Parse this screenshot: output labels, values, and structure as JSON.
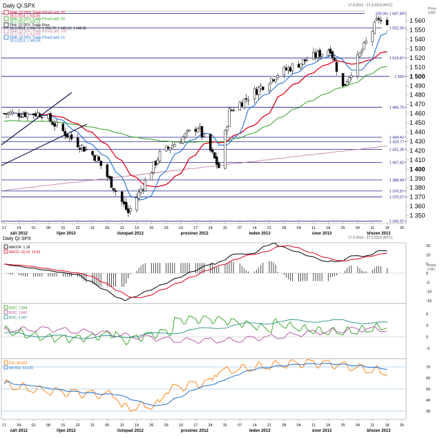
{
  "header": {
    "title": "Daily Q/.SPX",
    "date_range_main": "17.9.2012 - 27.3.2013 (NYC)",
    "date_range_ind": "17.9.2012 - 27.3.2013 (NYC)",
    "price_unit_line1": "Price",
    "price_unit_line2": "USD",
    "value_unit_line1": "Value",
    "value_unit_line2": "USD"
  },
  "colors": {
    "candle_up": "#ffffff",
    "candle_down": "#000000",
    "sma20": "#e0001a",
    "sma50": "#2aa01a",
    "sma200": "#c080a0",
    "sma10": "#1f6fd0",
    "hline": "#1a1a8c",
    "macd": "#000000",
    "macd_signal": "#e0001a",
    "roc1": "#2aa01a",
    "roc2": "#b04aa0",
    "roc3": "#1f8f7f",
    "rsi": "#ff7a00",
    "rsi_ma": "#1f6fd0"
  },
  "legend": [
    {
      "label": "SMA; Q/.SPX; Trade Price(Last); 20",
      "value": "18.3.2013; 1 531,81",
      "color": "#e0001a"
    },
    {
      "label": "SMA; Q/.SPX; Trade Price(Last); 50",
      "value": "18.3.2013; 1 509,12",
      "color": "#2aa01a"
    },
    {
      "label": "Ohlc; Q/.SPX; Trade Price",
      "value": "18.3.2013; 1 560,70; 1 560,70; 1 545,13; 1 548,35",
      "color": "#000000"
    },
    {
      "label": "SMA; Q/.SPX; Trade Price(Last); 200",
      "value": "18.3.2013; 1 424,89",
      "color": "#c080a0"
    },
    {
      "label": "SMA; Q/.SPX; Trade Price(Last); 10",
      "value": "18.3.2013; 1 549,35",
      "color": "#1f6fd0"
    }
  ],
  "price_axis_ticks": [
    "1 560",
    "1 550",
    "1 540",
    "1 530",
    "1 520",
    "1 510",
    "1 500",
    "1 490",
    "1 480",
    "1 470",
    "1 460",
    "1 450",
    "1 440",
    "1 430",
    "1 420",
    "1 410",
    "1 400",
    "1 390",
    "1 380",
    "1 370",
    "1 360",
    "1 350"
  ],
  "fib_labels": [
    "100,0% 1 567,89",
    "1 552,26",
    "1 519,87",
    "1 500",
    "1 466,75",
    "1 434,42",
    "1 429,77",
    "1 421,36",
    "1 407,42",
    "1 388,44",
    "1 376,57",
    "1 370,07",
    "1 343,97"
  ],
  "fib_levels": [
    1567.89,
    1552.26,
    1519.87,
    1500,
    1466.75,
    1434.42,
    1429.77,
    1421.36,
    1407.42,
    1388.44,
    1376.57,
    1370.07,
    1343.97
  ],
  "date_ticks": [
    "17",
    "24",
    "01",
    "08",
    "15",
    "22",
    "31",
    "05",
    "12",
    "19",
    "26",
    "03",
    "10",
    "17",
    "24",
    "31",
    "07",
    "14",
    "21",
    "28",
    "04",
    "11",
    "18",
    "25",
    "04",
    "11",
    "18",
    "25"
  ],
  "month_labels": [
    "září 2012",
    "říjen 2012",
    "listopad 2012",
    "prosinec 2012",
    "leden 2013",
    "únor 2013",
    "březen 2013"
  ],
  "indicator_legends": {
    "macd": [
      {
        "label": "MACDF; 1,18",
        "color": "#000000"
      },
      {
        "label": "MACD; 18,16; 14,50",
        "color": "#e0001a"
      }
    ],
    "roc": [
      {
        "label": "ROC; 7,034",
        "color": "#2aa01a"
      },
      {
        "label": "ROC; 1,842",
        "color": "#b04aa0"
      },
      {
        "label": "ROC; 4,467",
        "color": "#1f8f7f"
      }
    ],
    "rsi": [
      {
        "label": "RSI; 60,924",
        "color": "#ff7a00"
      },
      {
        "label": "MA RSI; 63,625",
        "color": "#1f6fd0"
      }
    ]
  },
  "macd_axis": [
    "15",
    "10",
    "5",
    "0",
    "-5",
    "-10",
    "-15"
  ],
  "roc_axis": [
    "6",
    "3",
    "0",
    "-3"
  ],
  "rsi_axis": [
    "70",
    "60",
    "50",
    "40",
    "30"
  ],
  "chart_data": {
    "type": "candlestick",
    "title": "Daily Q/.SPX",
    "ylabel": "Price USD",
    "ylim": [
      1343,
      1569
    ],
    "x_range": [
      "2012-09-17",
      "2013-03-27"
    ],
    "sample_points_approx": [
      {
        "date": "2012-09-17",
        "close": 1460
      },
      {
        "date": "2012-10-05",
        "close": 1460
      },
      {
        "date": "2012-10-19",
        "close": 1433
      },
      {
        "date": "2012-10-31",
        "close": 1412
      },
      {
        "date": "2012-11-15",
        "close": 1353
      },
      {
        "date": "2012-11-30",
        "close": 1416
      },
      {
        "date": "2012-12-18",
        "close": 1446
      },
      {
        "date": "2012-12-28",
        "close": 1402
      },
      {
        "date": "2013-01-02",
        "close": 1462
      },
      {
        "date": "2013-01-25",
        "close": 1503
      },
      {
        "date": "2013-02-19",
        "close": 1530
      },
      {
        "date": "2013-02-25",
        "close": 1488
      },
      {
        "date": "2013-03-14",
        "close": 1563
      },
      {
        "date": "2013-03-18",
        "close": 1548
      }
    ],
    "sma_last": {
      "sma10": 1549.35,
      "sma20": 1531.81,
      "sma50": 1509.12,
      "sma200": 1424.89
    }
  }
}
